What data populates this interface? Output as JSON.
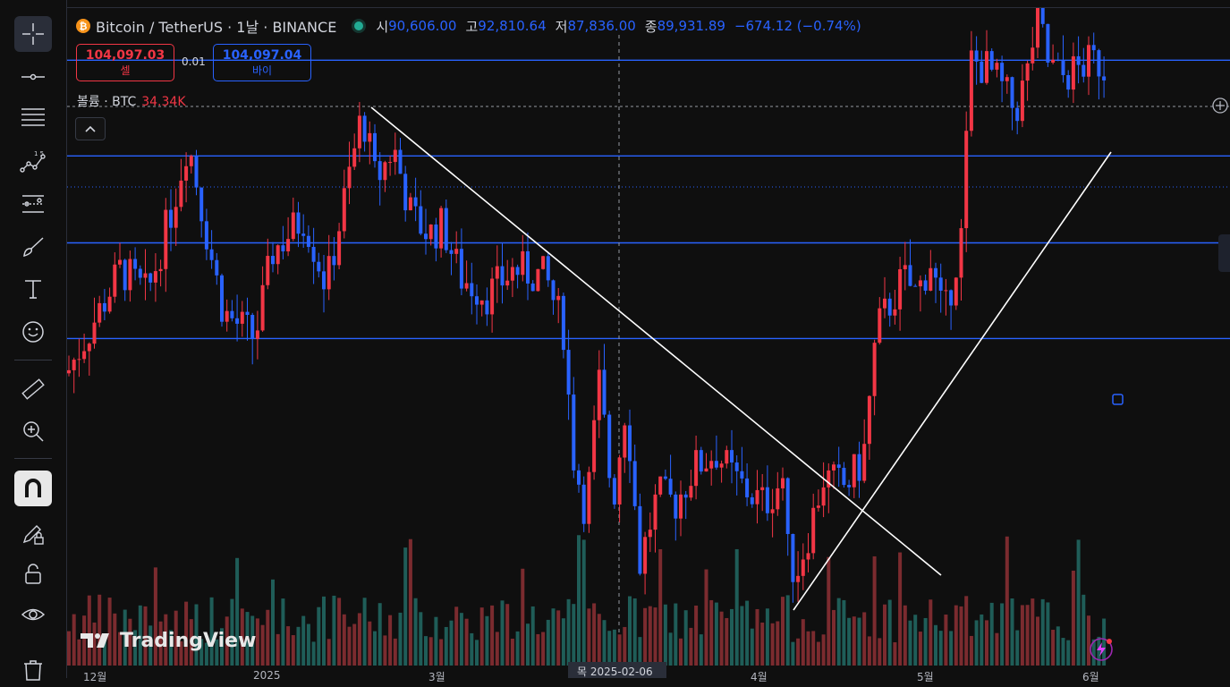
{
  "toolbar": {
    "items": [
      {
        "name": "crosshair-icon",
        "top": 18
      },
      {
        "name": "trend-line-icon",
        "top": 66
      },
      {
        "name": "fib-retracement-icon",
        "top": 112
      },
      {
        "name": "patterns-icon",
        "top": 161
      },
      {
        "name": "forecast-icon",
        "top": 208
      },
      {
        "name": "brush-icon",
        "top": 256
      },
      {
        "name": "text-icon",
        "top": 303
      },
      {
        "name": "emoji-icon",
        "top": 351
      },
      {
        "name": "ruler-icon",
        "top": 415
      },
      {
        "name": "zoom-in-icon",
        "top": 462
      },
      {
        "name": "magnet-icon",
        "top": 526
      },
      {
        "name": "lock-drawings-icon",
        "top": 576
      },
      {
        "name": "lock-icon",
        "top": 622
      },
      {
        "name": "eye-icon",
        "top": 667
      },
      {
        "name": "trash-icon",
        "top": 735
      }
    ]
  },
  "legend": {
    "logo_letter": "₿",
    "symbol": "Bitcoin / TetherUS · 1날 · BINANCE",
    "open_label": "시",
    "open_value": "90,606.00",
    "high_label": "고",
    "high_value": "92,810.64",
    "low_label": "저",
    "low_value": "87,836.00",
    "close_label": "종",
    "close_value": "89,931.89",
    "change": "−674.12 (−0.74%)"
  },
  "trade": {
    "sell_price": "104,097.03",
    "sell_label": "셀",
    "spread": "0.01",
    "buy_price": "104,097.04",
    "buy_label": "바이"
  },
  "volume": {
    "label": "볼륨 · BTC",
    "value": "34.34K"
  },
  "logo": {
    "text": "TradingView"
  },
  "x_axis": {
    "labels": [
      "12월",
      "2025",
      "3월",
      "4월",
      "5월",
      "6월"
    ],
    "crosshair": "목 2025-02-06"
  },
  "colors": {
    "up": "#f23645",
    "down": "#2962ff",
    "vol_up": "#7b2b2f",
    "vol_down": "#1f5d58",
    "hline": "#2962ff",
    "trendline": "#ffffff"
  },
  "chart_data": {
    "type": "candlestick",
    "hlines": [
      104000,
      98500,
      93500,
      88000
    ],
    "trendlines": [
      {
        "from": [
          1,
          100000
        ],
        "to": [
          2,
          80000
        ]
      },
      {
        "from": [
          3,
          76000
        ],
        "to": [
          4,
          101000
        ]
      }
    ]
  }
}
